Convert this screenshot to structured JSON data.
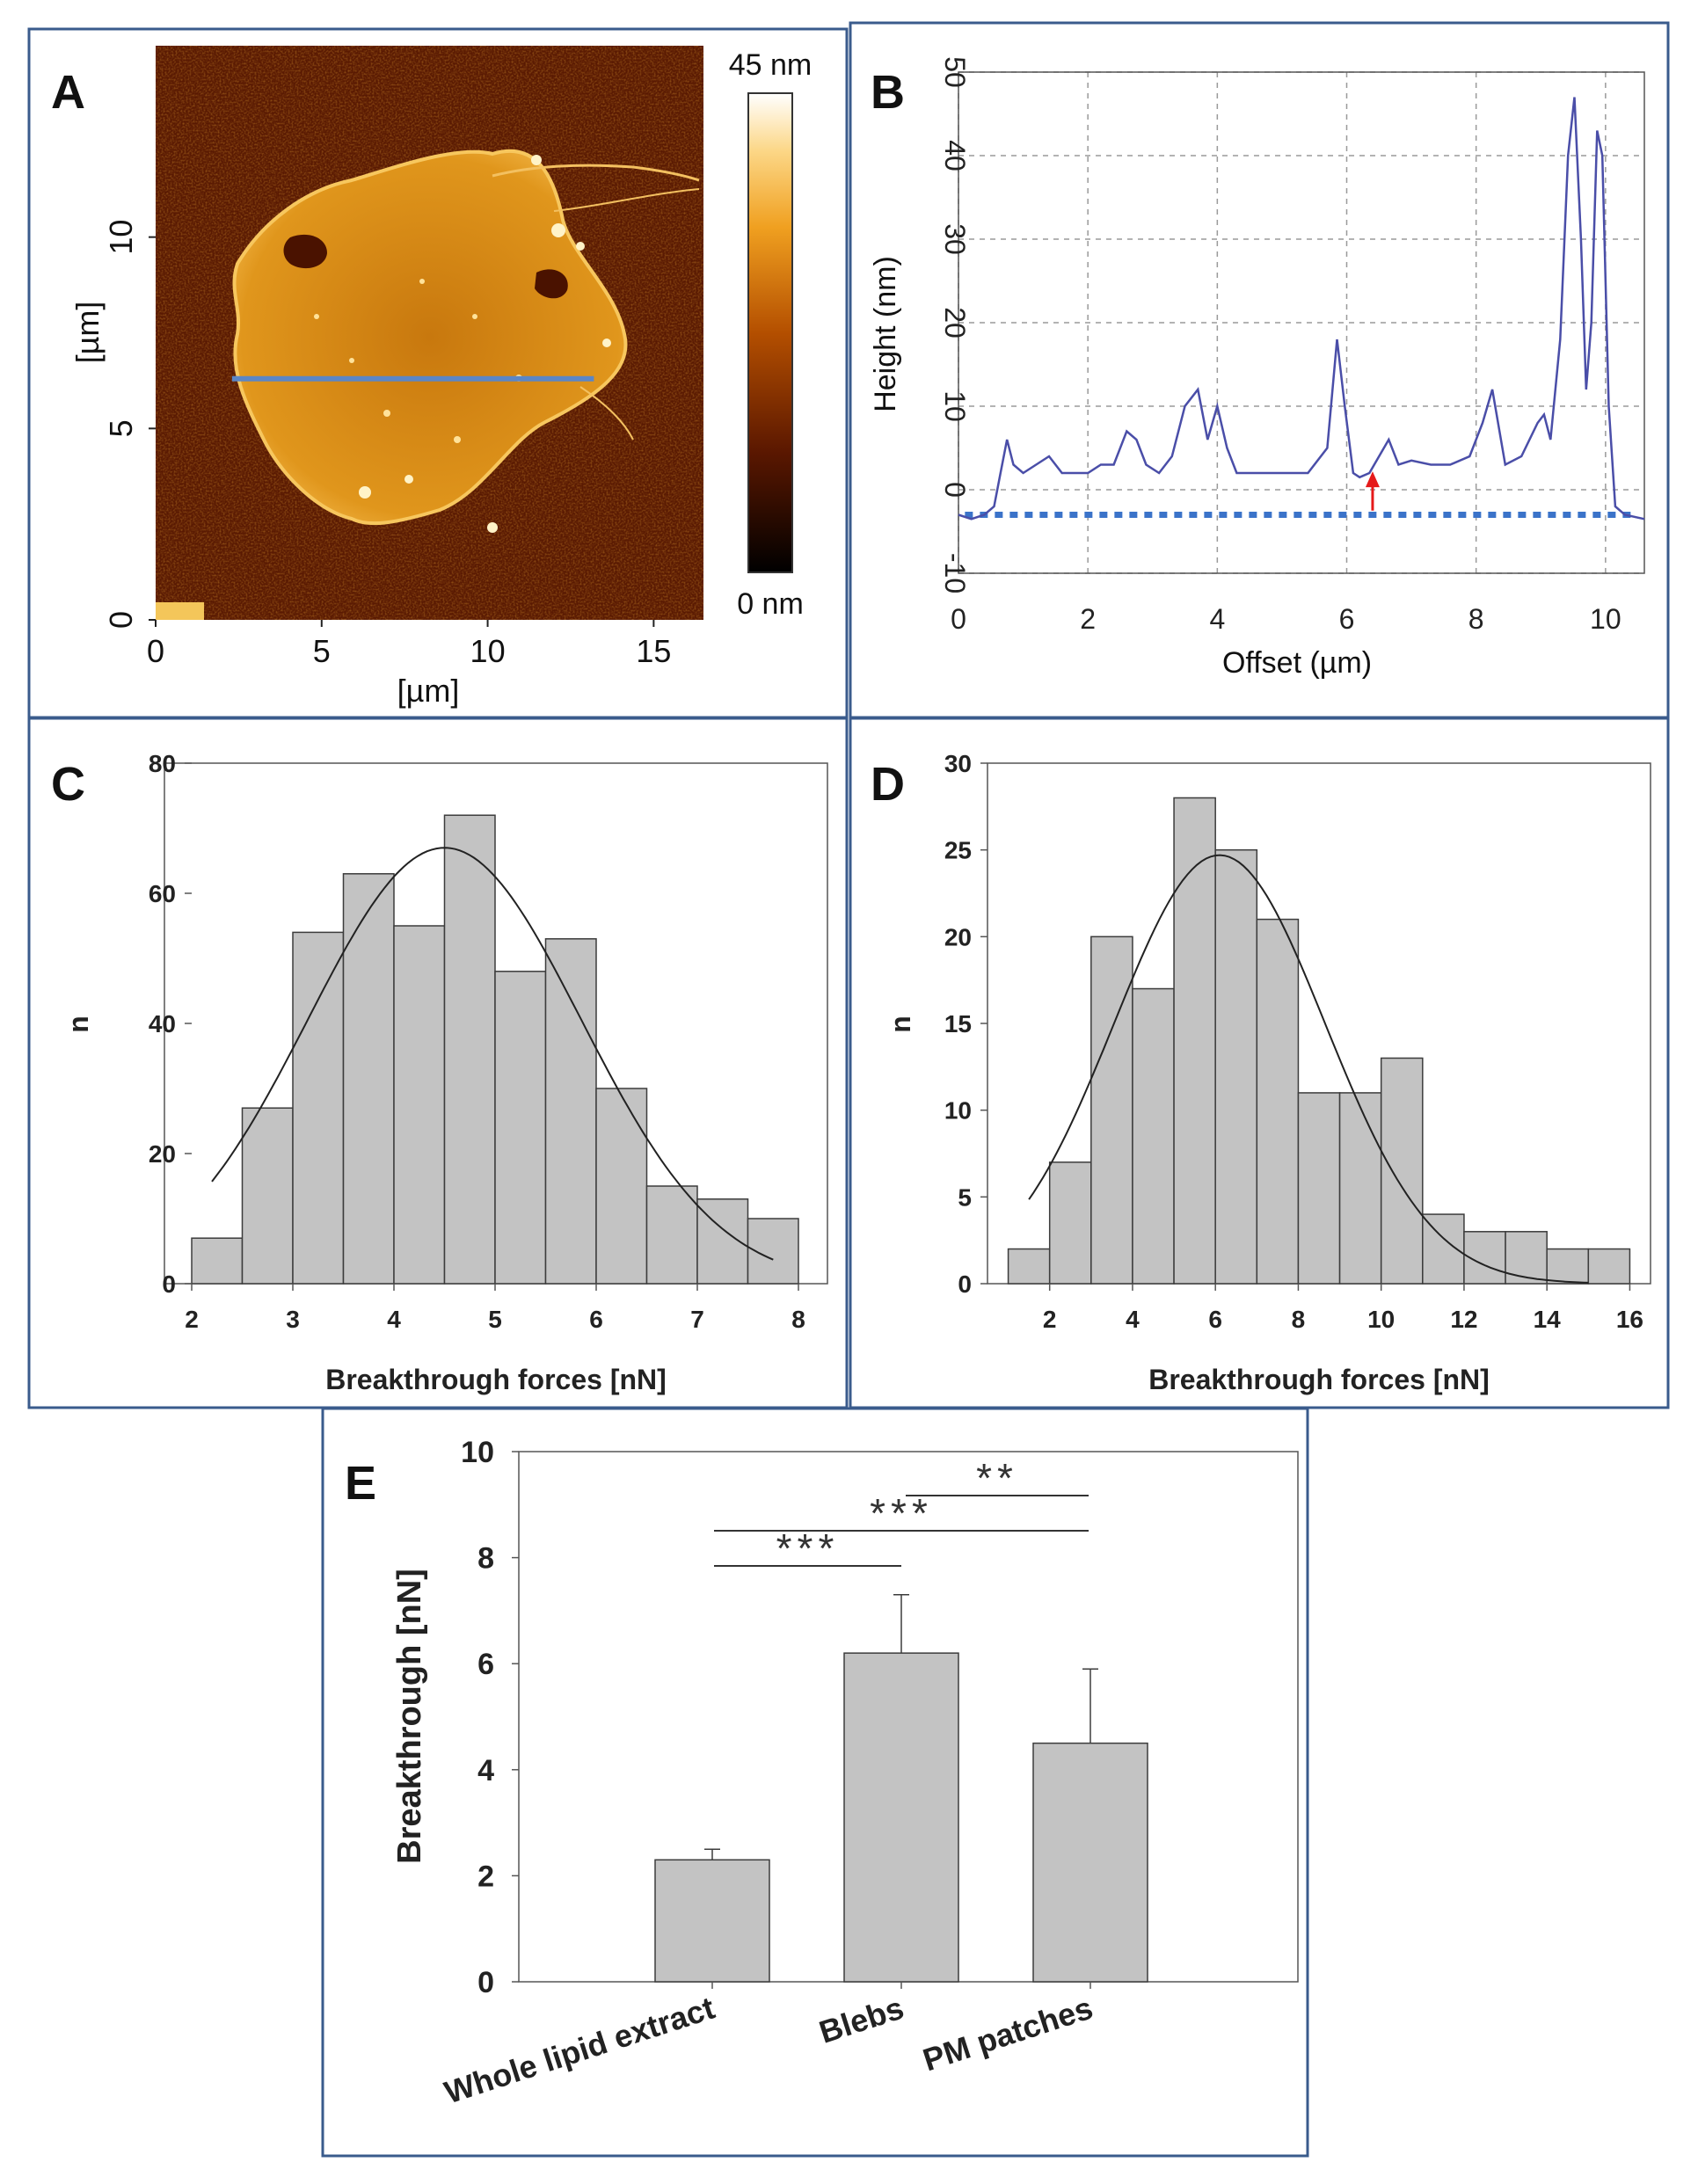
{
  "panels": {
    "A": {
      "letter": "A"
    },
    "B": {
      "letter": "B"
    },
    "C": {
      "letter": "C"
    },
    "D": {
      "letter": "D"
    },
    "E": {
      "letter": "E"
    }
  },
  "chart_data": [
    {
      "id": "A",
      "type": "heatmap",
      "title": "",
      "xlabel": "[µm]",
      "ylabel": "[µm]",
      "xlim": [
        0,
        16.5
      ],
      "ylim": [
        0,
        15
      ],
      "xticks": [
        "0",
        "5",
        "10",
        "15"
      ],
      "yticks": [
        "0",
        "5",
        "10"
      ],
      "colorbar": {
        "max_label": "45 nm",
        "min_label": "0 nm",
        "range": [
          0,
          45
        ]
      },
      "profile_line": {
        "x_start": 2.3,
        "x_end": 13.2,
        "y": 6.3
      },
      "colors": {
        "bg": "#5a1a02",
        "patch": "#d98a16",
        "highlight": "#fff0c0",
        "line": "#5b86c6"
      }
    },
    {
      "id": "B",
      "type": "line",
      "xlabel": "Offset (µm)",
      "ylabel": "Height (nm)",
      "xlim": [
        0,
        10.6
      ],
      "ylim": [
        -10,
        50
      ],
      "xticks": [
        0,
        2,
        4,
        6,
        8,
        10
      ],
      "yticks": [
        -10,
        0,
        10,
        20,
        30,
        40,
        50
      ],
      "baseline": -3,
      "arrow_x": 6.4,
      "series": [
        {
          "name": "height profile",
          "x": [
            0,
            0.2,
            0.4,
            0.55,
            0.65,
            0.75,
            0.85,
            1.0,
            1.2,
            1.4,
            1.6,
            1.8,
            2.0,
            2.2,
            2.4,
            2.6,
            2.75,
            2.9,
            3.1,
            3.3,
            3.5,
            3.7,
            3.85,
            4.0,
            4.15,
            4.3,
            4.6,
            5.0,
            5.4,
            5.7,
            5.85,
            5.97,
            6.1,
            6.2,
            6.35,
            6.5,
            6.65,
            6.8,
            7.0,
            7.3,
            7.6,
            7.9,
            8.1,
            8.25,
            8.45,
            8.7,
            8.95,
            9.05,
            9.15,
            9.3,
            9.42,
            9.52,
            9.62,
            9.7,
            9.78,
            9.87,
            9.95,
            10.05,
            10.15,
            10.3,
            10.6
          ],
          "y": [
            -3,
            -3.5,
            -3,
            -2,
            2,
            6,
            3,
            2,
            3,
            4,
            2,
            2,
            2,
            3,
            3,
            7,
            6,
            3,
            2,
            4,
            10,
            12,
            6,
            10,
            5,
            2,
            2,
            2,
            2,
            5,
            18,
            10,
            2,
            1.5,
            2,
            4,
            6,
            3,
            3.5,
            3,
            3,
            4,
            8,
            12,
            3,
            4,
            8,
            9,
            6,
            18,
            40,
            47,
            30,
            12,
            20,
            43,
            40,
            10,
            -2,
            -3,
            -3.5
          ]
        }
      ],
      "colors": {
        "line": "#4a4ea8",
        "baseline": "#3b73c9",
        "arrow": "#e51a1a",
        "grid": "#9a9a9a"
      }
    },
    {
      "id": "C",
      "type": "bar",
      "xlabel": "Breakthrough forces [nN]",
      "ylabel": "n",
      "xlim": [
        2,
        8
      ],
      "ylim": [
        0,
        80
      ],
      "xticks": [
        2,
        3,
        4,
        5,
        6,
        7,
        8
      ],
      "yticks": [
        0,
        20,
        40,
        60,
        80
      ],
      "bin_width": 0.5,
      "bins_start": [
        2.0,
        2.5,
        3.0,
        3.5,
        4.0,
        4.5,
        5.0,
        5.5,
        6.0,
        6.5,
        7.0,
        7.5
      ],
      "values": [
        7,
        27,
        54,
        63,
        55,
        72,
        48,
        53,
        30,
        15,
        13,
        10
      ],
      "fit": {
        "type": "gaussian",
        "amplitude": 67,
        "mean": 4.5,
        "sd": 1.35,
        "x_range": [
          2.2,
          7.75
        ]
      }
    },
    {
      "id": "D",
      "type": "bar",
      "xlabel": "Breakthrough forces [nN]",
      "ylabel": "n",
      "xlim": [
        0.5,
        16.5
      ],
      "ylim": [
        0,
        30
      ],
      "xticks": [
        2,
        4,
        6,
        8,
        10,
        12,
        14,
        16
      ],
      "yticks": [
        0,
        5,
        10,
        15,
        20,
        25,
        30
      ],
      "bin_width": 1,
      "bins_start": [
        1,
        2,
        3,
        4,
        5,
        6,
        7,
        8,
        9,
        10,
        11,
        12,
        13,
        14,
        15
      ],
      "values": [
        2,
        7,
        20,
        17,
        28,
        25,
        21,
        11,
        11,
        13,
        4,
        3,
        3,
        2,
        2
      ],
      "fit": {
        "type": "gaussian",
        "amplitude": 24.7,
        "mean": 6.1,
        "sd": 2.55,
        "x_range": [
          1.5,
          15.0
        ]
      }
    },
    {
      "id": "E",
      "type": "bar",
      "xlabel": "",
      "ylabel": "Breakthrough [nN]",
      "ylim": [
        0,
        10
      ],
      "yticks": [
        0,
        2,
        4,
        6,
        8,
        10
      ],
      "categories": [
        "Whole lipid extract",
        "Blebs",
        "PM patches"
      ],
      "values": [
        2.3,
        6.2,
        4.5
      ],
      "errors": [
        0.2,
        1.1,
        1.4
      ],
      "significance": [
        {
          "from": 0,
          "to": 1,
          "label": "***"
        },
        {
          "from": 0,
          "to": 2,
          "label": "***"
        },
        {
          "from": 1,
          "to": 2,
          "label": "**"
        }
      ]
    }
  ]
}
